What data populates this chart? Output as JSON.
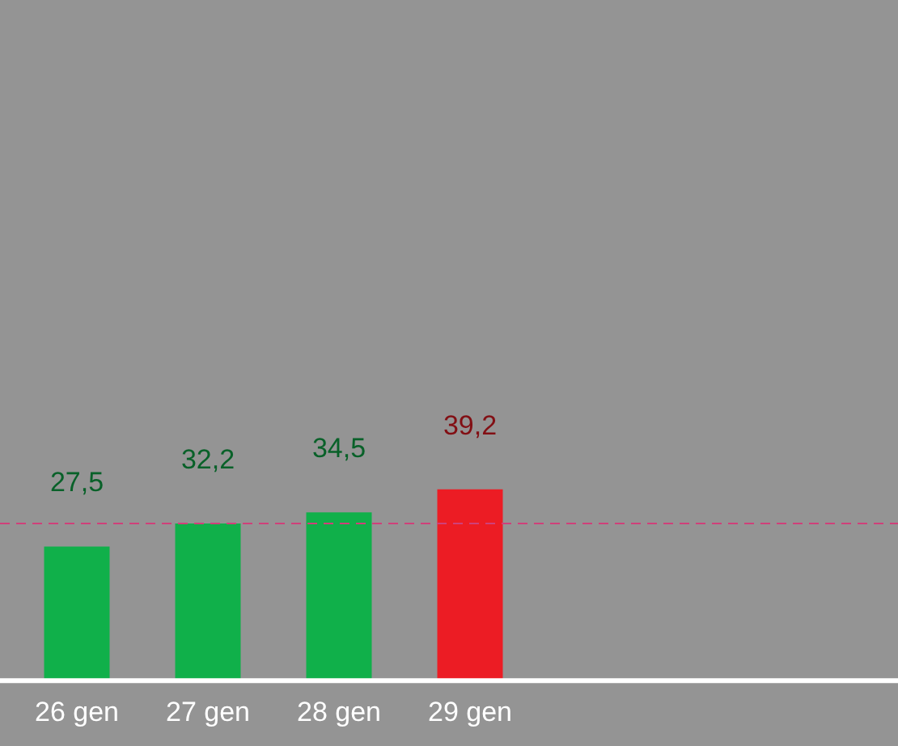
{
  "chart_data": {
    "type": "bar",
    "categories": [
      "26 gen",
      "27 gen",
      "28 gen",
      "29 gen"
    ],
    "values": [
      27.5,
      32.2,
      34.5,
      39.2
    ],
    "colors": [
      "#10b04a",
      "#10b04a",
      "#10b04a",
      "#ec1c24"
    ],
    "value_labels": [
      "27,5",
      "32,2",
      "34,5",
      "39,2"
    ],
    "tick_labels": "x",
    "grid": false,
    "legend": false,
    "ref_lines": [
      {
        "axis": "y",
        "value": 32.2,
        "color": "#d0407a",
        "line_style": "dashed"
      }
    ]
  }
}
